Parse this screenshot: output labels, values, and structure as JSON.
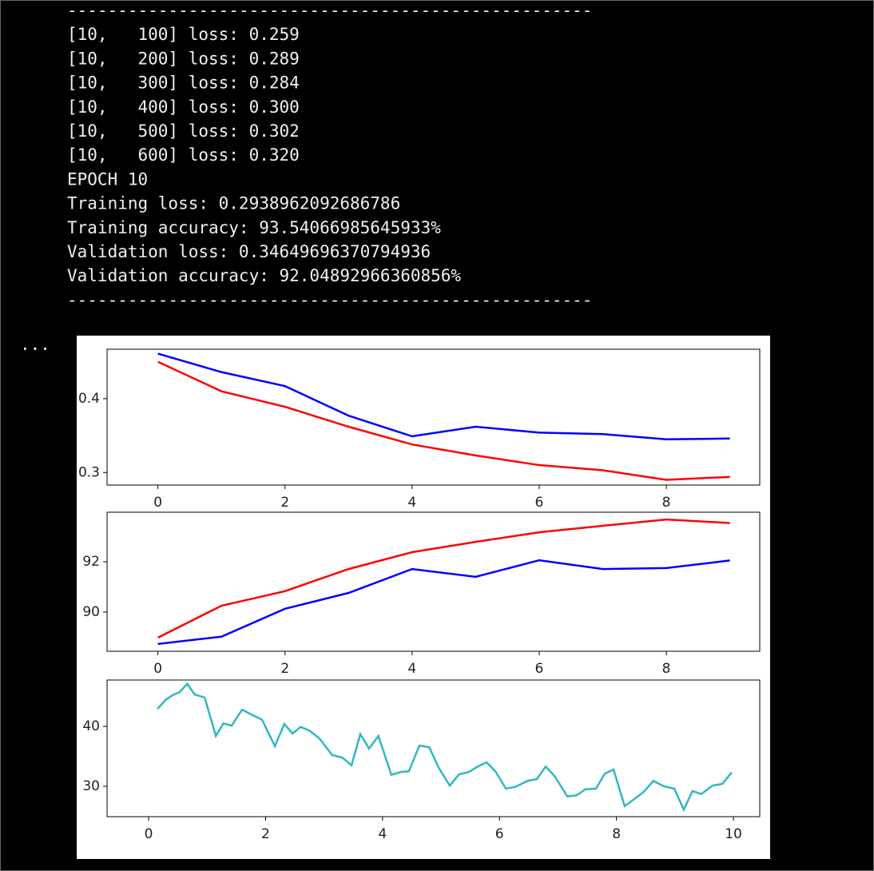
{
  "terminal": {
    "lines": [
      "----------------------------------------------------",
      "[10,   100] loss: 0.259",
      "[10,   200] loss: 0.289",
      "[10,   300] loss: 0.284",
      "[10,   400] loss: 0.300",
      "[10,   500] loss: 0.302",
      "[10,   600] loss: 0.320",
      "EPOCH 10",
      "Training loss: 0.2938962092686786",
      "Training accuracy: 93.54066985645933%",
      "Validation loss: 0.34649696370794936",
      "Validation accuracy: 92.04892966360856%",
      "----------------------------------------------------"
    ],
    "cell_marker": "..."
  },
  "chart_data": [
    {
      "type": "line",
      "x": [
        0,
        1,
        2,
        3,
        4,
        5,
        6,
        7,
        8,
        9
      ],
      "series": [
        {
          "color": "#0000ff",
          "values": [
            0.461,
            0.436,
            0.417,
            0.377,
            0.349,
            0.362,
            0.354,
            0.352,
            0.345,
            0.346
          ]
        },
        {
          "color": "#ff0000",
          "values": [
            0.45,
            0.41,
            0.389,
            0.362,
            0.338,
            0.323,
            0.31,
            0.303,
            0.29,
            0.294
          ]
        }
      ],
      "xlim": [
        -0.8,
        9.47
      ],
      "ylim": [
        0.283,
        0.467
      ],
      "xticks": [
        0,
        2,
        4,
        6,
        8
      ],
      "yticks": [
        0.3,
        0.4
      ]
    },
    {
      "type": "line",
      "x": [
        0,
        1,
        2,
        3,
        4,
        5,
        6,
        7,
        8,
        9
      ],
      "series": [
        {
          "color": "#0000ff",
          "values": [
            88.73,
            89.02,
            90.13,
            90.76,
            91.71,
            91.4,
            92.06,
            91.71,
            91.75,
            92.05
          ]
        },
        {
          "color": "#ff0000",
          "values": [
            88.98,
            90.25,
            90.83,
            91.71,
            92.38,
            92.79,
            93.17,
            93.43,
            93.68,
            93.54
          ]
        }
      ],
      "xlim": [
        -0.8,
        9.47
      ],
      "ylim": [
        88.44,
        93.97
      ],
      "xticks": [
        0,
        2,
        4,
        6,
        8
      ],
      "yticks": [
        90,
        92
      ]
    },
    {
      "type": "line",
      "x": [
        0.15,
        0.29,
        0.41,
        0.53,
        0.66,
        0.79,
        0.96,
        1.15,
        1.28,
        1.42,
        1.6,
        1.73,
        1.94,
        2.16,
        2.32,
        2.46,
        2.6,
        2.75,
        2.92,
        3.14,
        3.31,
        3.47,
        3.62,
        3.77,
        3.93,
        4.15,
        4.32,
        4.45,
        4.63,
        4.8,
        4.96,
        5.15,
        5.31,
        5.48,
        5.63,
        5.78,
        5.93,
        6.11,
        6.27,
        6.48,
        6.64,
        6.79,
        6.95,
        7.16,
        7.32,
        7.47,
        7.65,
        7.8,
        7.95,
        8.14,
        8.31,
        8.47,
        8.63,
        8.81,
        8.99,
        9.15,
        9.3,
        9.45,
        9.64,
        9.81,
        9.97
      ],
      "series": [
        {
          "color": "#30b8c4",
          "values": [
            42.9,
            44.4,
            45.2,
            45.7,
            47.1,
            45.3,
            44.8,
            38.4,
            40.5,
            40.1,
            42.8,
            42.1,
            41.1,
            36.7,
            40.4,
            38.8,
            39.9,
            39.3,
            38.0,
            35.2,
            34.8,
            33.5,
            38.7,
            36.3,
            38.4,
            31.9,
            32.4,
            32.5,
            36.8,
            36.5,
            33.1,
            30.1,
            32.0,
            32.4,
            33.3,
            34.0,
            32.5,
            29.6,
            29.9,
            30.9,
            31.2,
            33.3,
            31.6,
            28.3,
            28.5,
            29.5,
            29.6,
            32.1,
            32.8,
            26.7,
            27.9,
            29.1,
            30.9,
            30.0,
            29.6,
            26.1,
            29.2,
            28.7,
            30.1,
            30.4,
            32.3
          ]
        }
      ],
      "xlim": [
        -0.71,
        10.45
      ],
      "ylim": [
        24.93,
        47.73
      ],
      "xticks": [
        0,
        2,
        4,
        6,
        8,
        10
      ],
      "yticks": [
        30,
        40
      ]
    }
  ]
}
